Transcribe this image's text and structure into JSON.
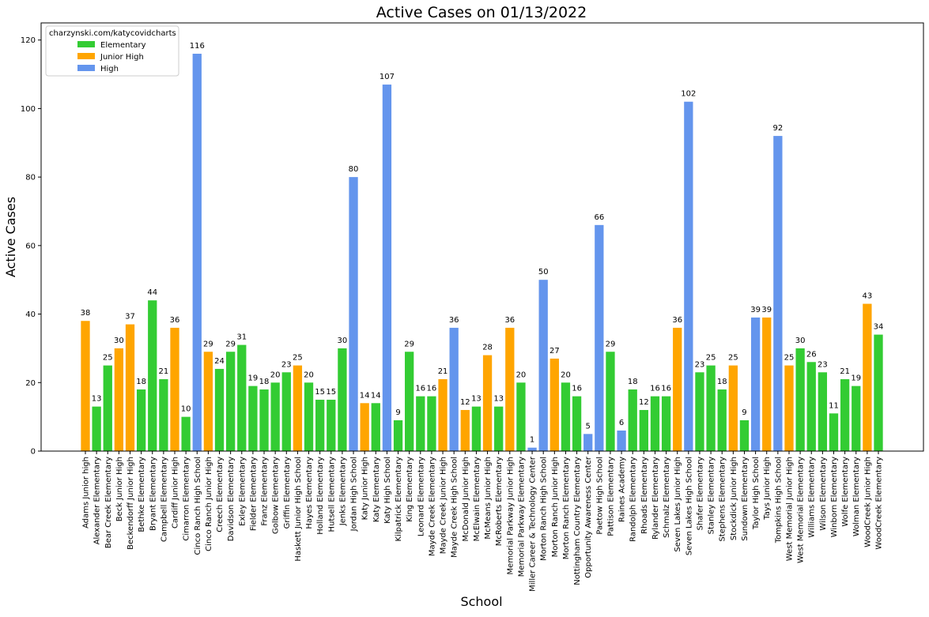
{
  "chart_data": {
    "type": "bar",
    "title": "Active Cases on 01/13/2022",
    "xlabel": "School",
    "ylabel": "Active Cases",
    "ylim": [
      0,
      125
    ],
    "yticks": [
      0,
      20,
      40,
      60,
      80,
      100,
      120
    ],
    "grid": false,
    "legend": {
      "title": "charzynski.com/katycovidcharts",
      "placement": "top-left",
      "entries": [
        {
          "name": "Elementary",
          "color": "#33cc33"
        },
        {
          "name": "Junior High",
          "color": "#ffa500"
        },
        {
          "name": "High",
          "color": "#6495ed"
        }
      ]
    },
    "colors": {
      "Elementary": "#33cc33",
      "Junior High": "#ffa500",
      "High": "#6495ed"
    },
    "bars": [
      {
        "school": "Adams Junior high",
        "value": 38,
        "level": "Junior High"
      },
      {
        "school": "Alexander Elementary",
        "value": 13,
        "level": "Elementary"
      },
      {
        "school": "Bear Creek Elementary",
        "value": 25,
        "level": "Elementary"
      },
      {
        "school": "Beck Junior High",
        "value": 30,
        "level": "Junior High"
      },
      {
        "school": "Beckendorff Junior High",
        "value": 37,
        "level": "Junior High"
      },
      {
        "school": "Bethke Elementary",
        "value": 18,
        "level": "Elementary"
      },
      {
        "school": "Bryant Elementary",
        "value": 44,
        "level": "Elementary"
      },
      {
        "school": "Campbell Elementary",
        "value": 21,
        "level": "Elementary"
      },
      {
        "school": "Cardiff Junior High",
        "value": 36,
        "level": "Junior High"
      },
      {
        "school": "Cimarron Elementary",
        "value": 10,
        "level": "Elementary"
      },
      {
        "school": "Cinco Ranch High School",
        "value": 116,
        "level": "High"
      },
      {
        "school": "Cinco Ranch Junior High",
        "value": 29,
        "level": "Junior High"
      },
      {
        "school": "Creech Elementary",
        "value": 24,
        "level": "Elementary"
      },
      {
        "school": "Davidson Elementary",
        "value": 29,
        "level": "Elementary"
      },
      {
        "school": "Exley Elementary",
        "value": 31,
        "level": "Elementary"
      },
      {
        "school": "Fielder Elementary",
        "value": 19,
        "level": "Elementary"
      },
      {
        "school": "Franz Elementary",
        "value": 18,
        "level": "Elementary"
      },
      {
        "school": "Golbow Elementary",
        "value": 20,
        "level": "Elementary"
      },
      {
        "school": "Griffin Elementary",
        "value": 23,
        "level": "Elementary"
      },
      {
        "school": "Haskett Junior High School",
        "value": 25,
        "level": "Junior High"
      },
      {
        "school": "Hayes Elementary",
        "value": 20,
        "level": "Elementary"
      },
      {
        "school": "Holland Elementary",
        "value": 15,
        "level": "Elementary"
      },
      {
        "school": "Hutsell Elementary",
        "value": 15,
        "level": "Elementary"
      },
      {
        "school": "Jenks Elementary",
        "value": 30,
        "level": "Elementary"
      },
      {
        "school": "Jordan High School",
        "value": 80,
        "level": "High"
      },
      {
        "school": "Katy Junior High",
        "value": 14,
        "level": "Junior High"
      },
      {
        "school": "Katy Elementary",
        "value": 14,
        "level": "Elementary"
      },
      {
        "school": "Katy High School",
        "value": 107,
        "level": "High"
      },
      {
        "school": "Kilpatrick Elementary",
        "value": 9,
        "level": "Elementary"
      },
      {
        "school": "King Elementary",
        "value": 29,
        "level": "Elementary"
      },
      {
        "school": "Leonard Elementary",
        "value": 16,
        "level": "Elementary"
      },
      {
        "school": "Mayde Creek Elementary",
        "value": 16,
        "level": "Elementary"
      },
      {
        "school": "Mayde Creek Junior High",
        "value": 21,
        "level": "Junior High"
      },
      {
        "school": "Mayde Creek High School",
        "value": 36,
        "level": "High"
      },
      {
        "school": "McDonald Junior High",
        "value": 12,
        "level": "Junior High"
      },
      {
        "school": "McElwain Elementary",
        "value": 13,
        "level": "Elementary"
      },
      {
        "school": "McMeans Junior High",
        "value": 28,
        "level": "Junior High"
      },
      {
        "school": "McRoberts Elementary",
        "value": 13,
        "level": "Elementary"
      },
      {
        "school": "Memorial Parkway Junior High",
        "value": 36,
        "level": "Junior High"
      },
      {
        "school": "Memorial Parkway Elementary",
        "value": 20,
        "level": "Elementary"
      },
      {
        "school": "Miller Career & Technology Center",
        "value": 1,
        "level": "High"
      },
      {
        "school": "Morton Ranch High School",
        "value": 50,
        "level": "High"
      },
      {
        "school": "Morton Ranch Junior High",
        "value": 27,
        "level": "Junior High"
      },
      {
        "school": "Morton Ranch Elementary",
        "value": 20,
        "level": "Elementary"
      },
      {
        "school": "Nottingham Country Elementary",
        "value": 16,
        "level": "Elementary"
      },
      {
        "school": "Opportunity Awareness Center",
        "value": 5,
        "level": "High"
      },
      {
        "school": "Paetow High School",
        "value": 66,
        "level": "High"
      },
      {
        "school": "Pattison Elementary",
        "value": 29,
        "level": "Elementary"
      },
      {
        "school": "Raines Academy",
        "value": 6,
        "level": "High"
      },
      {
        "school": "Randolph Elementary",
        "value": 18,
        "level": "Elementary"
      },
      {
        "school": "Rhoads Elementary",
        "value": 12,
        "level": "Elementary"
      },
      {
        "school": "Rylander Elementary",
        "value": 16,
        "level": "Elementary"
      },
      {
        "school": "Schmalz Elementary",
        "value": 16,
        "level": "Elementary"
      },
      {
        "school": "Seven Lakes Junior High",
        "value": 36,
        "level": "Junior High"
      },
      {
        "school": "Seven Lakes High School",
        "value": 102,
        "level": "High"
      },
      {
        "school": "Shafer Elementary",
        "value": 23,
        "level": "Elementary"
      },
      {
        "school": "Stanley Elementary",
        "value": 25,
        "level": "Elementary"
      },
      {
        "school": "Stephens Elementary",
        "value": 18,
        "level": "Elementary"
      },
      {
        "school": "Stockdick Junior High",
        "value": 25,
        "level": "Junior High"
      },
      {
        "school": "Sundown Elementary",
        "value": 9,
        "level": "Elementary"
      },
      {
        "school": "Taylor High School",
        "value": 39,
        "level": "High"
      },
      {
        "school": "Tays Junior High",
        "value": 39,
        "level": "Junior High"
      },
      {
        "school": "Tompkins High School",
        "value": 92,
        "level": "High"
      },
      {
        "school": "West Memorial Junior High",
        "value": 25,
        "level": "Junior High"
      },
      {
        "school": "West Memorial Elementary",
        "value": 30,
        "level": "Elementary"
      },
      {
        "school": "Williams Elementary",
        "value": 26,
        "level": "Elementary"
      },
      {
        "school": "Wilson Elementary",
        "value": 23,
        "level": "Elementary"
      },
      {
        "school": "Winborn Elementary",
        "value": 11,
        "level": "Elementary"
      },
      {
        "school": "Wolfe Elementary",
        "value": 21,
        "level": "Elementary"
      },
      {
        "school": "Wolman Elementary",
        "value": 19,
        "level": "Elementary"
      },
      {
        "school": "WoodCreek Junior High",
        "value": 43,
        "level": "Junior High"
      },
      {
        "school": "WoodCreek Elementary",
        "value": 34,
        "level": "Elementary"
      }
    ]
  }
}
